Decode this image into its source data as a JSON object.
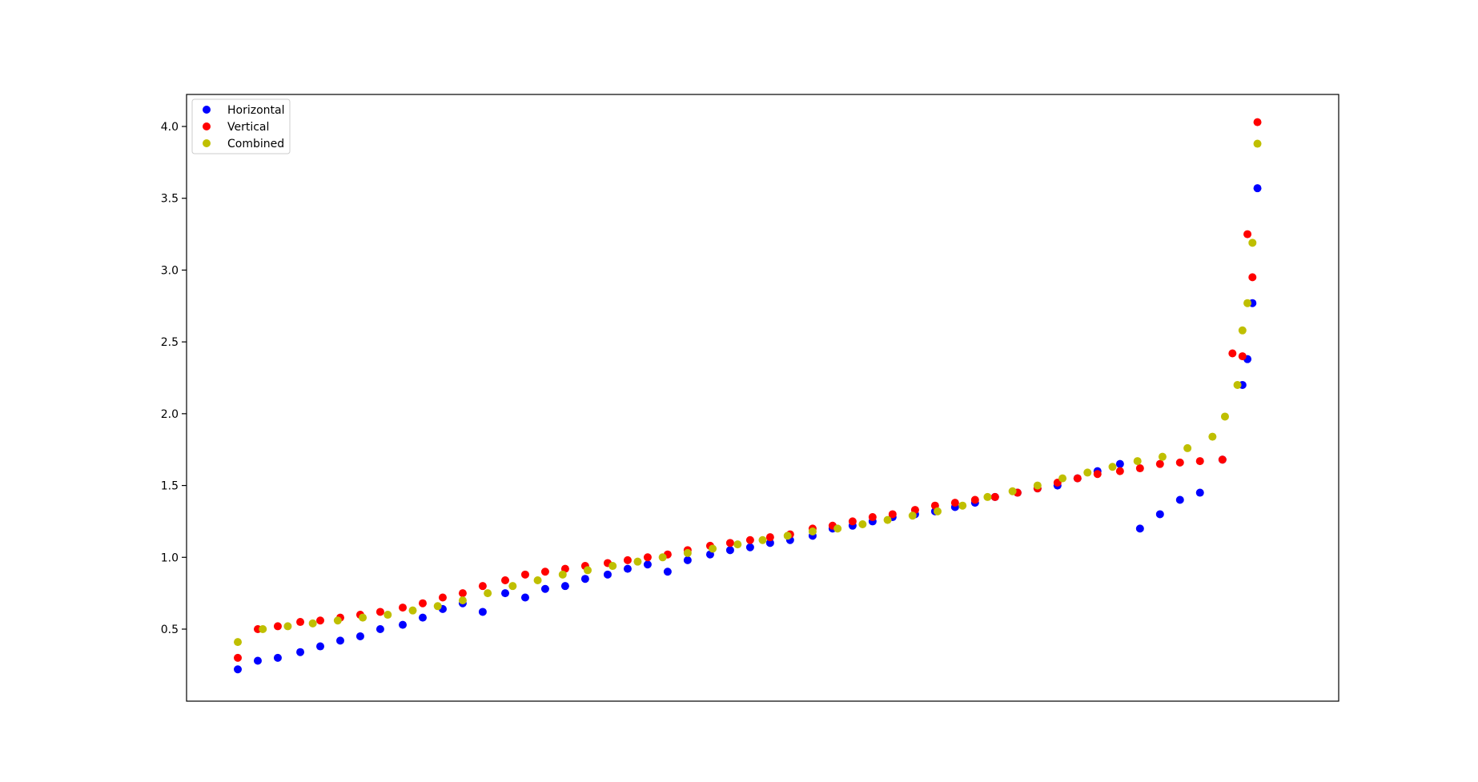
{
  "chart_data": {
    "type": "scatter",
    "title": "",
    "xlabel": "",
    "ylabel": "",
    "xlim": [
      0,
      420
    ],
    "ylim": [
      0.0,
      4.2
    ],
    "yticks": [
      0.5,
      1.0,
      1.5,
      2.0,
      2.5,
      3.0,
      3.5,
      4.0
    ],
    "ytick_labels": [
      "0.5",
      "1.0",
      "1.5",
      "2.0",
      "2.5",
      "3.0",
      "3.5",
      "4.0"
    ],
    "grid": false,
    "legend_position": "top-left",
    "series": [
      {
        "name": "Horizontal",
        "color": "#0000ff",
        "x": [
          0,
          8,
          16,
          25,
          33,
          41,
          49,
          57,
          66,
          74,
          82,
          90,
          98,
          107,
          115,
          123,
          131,
          139,
          148,
          156,
          164,
          172,
          180,
          189,
          197,
          205,
          213,
          221,
          230,
          238,
          246,
          254,
          262,
          271,
          279,
          287,
          295,
          303,
          312,
          320,
          328,
          336,
          344,
          353,
          361,
          369,
          377,
          385,
          394,
          402,
          404,
          406,
          408
        ],
        "y": [
          0.22,
          0.28,
          0.3,
          0.34,
          0.38,
          0.42,
          0.45,
          0.5,
          0.53,
          0.58,
          0.64,
          0.68,
          0.62,
          0.75,
          0.72,
          0.78,
          0.8,
          0.85,
          0.88,
          0.92,
          0.95,
          0.9,
          0.98,
          1.02,
          1.05,
          1.07,
          1.1,
          1.12,
          1.15,
          1.2,
          1.22,
          1.25,
          1.28,
          1.3,
          1.32,
          1.35,
          1.38,
          1.42,
          1.45,
          1.48,
          1.5,
          1.55,
          1.6,
          1.65,
          1.2,
          1.3,
          1.4,
          1.45,
          1.68,
          2.2,
          2.38,
          2.77,
          3.57
        ]
      },
      {
        "name": "Vertical",
        "color": "#ff0000",
        "x": [
          0,
          8,
          16,
          25,
          33,
          41,
          49,
          57,
          66,
          74,
          82,
          90,
          98,
          107,
          115,
          123,
          131,
          139,
          148,
          156,
          164,
          172,
          180,
          189,
          197,
          205,
          213,
          221,
          230,
          238,
          246,
          254,
          262,
          271,
          279,
          287,
          295,
          303,
          312,
          320,
          328,
          336,
          344,
          353,
          361,
          369,
          377,
          385,
          394,
          398,
          402,
          404,
          406,
          408
        ],
        "y": [
          0.3,
          0.5,
          0.52,
          0.55,
          0.56,
          0.58,
          0.6,
          0.62,
          0.65,
          0.68,
          0.72,
          0.75,
          0.8,
          0.84,
          0.88,
          0.9,
          0.92,
          0.94,
          0.96,
          0.98,
          1.0,
          1.02,
          1.05,
          1.08,
          1.1,
          1.12,
          1.14,
          1.16,
          1.2,
          1.22,
          1.25,
          1.28,
          1.3,
          1.33,
          1.36,
          1.38,
          1.4,
          1.42,
          1.45,
          1.48,
          1.52,
          1.55,
          1.58,
          1.6,
          1.62,
          1.65,
          1.66,
          1.67,
          1.68,
          2.42,
          2.4,
          3.25,
          2.95,
          4.03
        ]
      },
      {
        "name": "Combined",
        "color": "#bfbf00",
        "x": [
          0,
          10,
          20,
          30,
          40,
          50,
          60,
          70,
          80,
          90,
          100,
          110,
          120,
          130,
          140,
          150,
          160,
          170,
          180,
          190,
          200,
          210,
          220,
          230,
          240,
          250,
          260,
          270,
          280,
          290,
          300,
          310,
          320,
          330,
          340,
          350,
          360,
          370,
          380,
          390,
          395,
          400,
          402,
          404,
          406,
          408
        ],
        "y": [
          0.41,
          0.5,
          0.52,
          0.54,
          0.56,
          0.58,
          0.6,
          0.63,
          0.66,
          0.7,
          0.75,
          0.8,
          0.84,
          0.88,
          0.91,
          0.94,
          0.97,
          1.0,
          1.03,
          1.06,
          1.09,
          1.12,
          1.15,
          1.18,
          1.2,
          1.23,
          1.26,
          1.29,
          1.32,
          1.36,
          1.42,
          1.46,
          1.5,
          1.55,
          1.59,
          1.63,
          1.67,
          1.7,
          1.76,
          1.84,
          1.98,
          2.2,
          2.58,
          2.77,
          3.19,
          3.88
        ]
      }
    ]
  }
}
